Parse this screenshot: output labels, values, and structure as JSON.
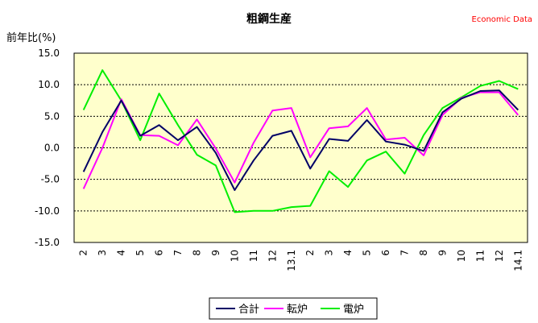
{
  "source_label": "Economic Data",
  "colors": {
    "plot_background": "#ffffcc",
    "source": "#ff0000",
    "axis": "#000000",
    "grid": "#000000"
  },
  "chart_data": {
    "type": "line",
    "title": "粗鋼生産",
    "ylabel": "前年比(%)",
    "xlabel": "",
    "ylim": [
      -15,
      15
    ],
    "yticks": [
      15,
      10,
      5,
      0,
      -5,
      -10,
      -15
    ],
    "ytick_labels": [
      "15.0",
      "10.0",
      "5.0",
      "0.0",
      "-5.0",
      "-10.0",
      "-15.0"
    ],
    "grid": "horizontal dotted",
    "legend_position": "bottom",
    "categories": [
      "2",
      "3",
      "4",
      "5",
      "6",
      "7",
      "8",
      "9",
      "10",
      "11",
      "12",
      "13.1",
      "2",
      "3",
      "4",
      "5",
      "6",
      "7",
      "8",
      "9",
      "10",
      "11",
      "12",
      "14.1"
    ],
    "series": [
      {
        "name": "合計",
        "color": "#000066",
        "values": [
          -3.8,
          2.5,
          7.5,
          1.9,
          3.6,
          1.2,
          3.3,
          -0.8,
          -6.7,
          -2.0,
          1.9,
          2.7,
          -3.3,
          1.4,
          1.1,
          4.4,
          1.0,
          0.5,
          -0.5,
          5.6,
          7.8,
          9.0,
          9.1,
          6.0
        ]
      },
      {
        "name": "転炉",
        "color": "#ff00ff",
        "values": [
          -6.5,
          0.0,
          7.7,
          2.0,
          1.9,
          0.4,
          4.5,
          -0.1,
          -5.5,
          0.8,
          5.9,
          6.3,
          -1.5,
          3.1,
          3.4,
          6.3,
          1.3,
          1.6,
          -1.2,
          5.2,
          7.9,
          8.8,
          8.8,
          5.2
        ]
      },
      {
        "name": "電炉",
        "color": "#00ee00",
        "values": [
          6.0,
          12.3,
          7.5,
          1.2,
          8.6,
          3.6,
          -1.1,
          -2.8,
          -10.2,
          -10.0,
          -10.0,
          -9.4,
          -9.2,
          -3.7,
          -6.2,
          -2.0,
          -0.6,
          -4.1,
          2.0,
          6.3,
          8.0,
          9.8,
          10.6,
          9.3
        ]
      }
    ]
  }
}
